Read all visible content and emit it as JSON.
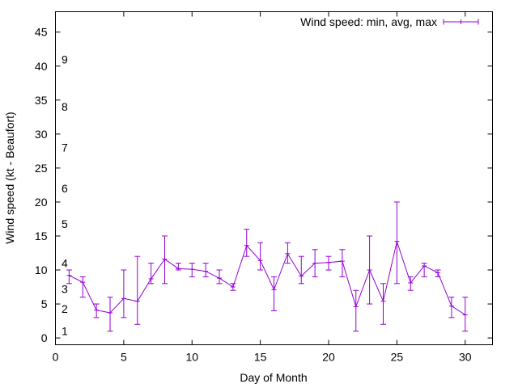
{
  "chart_data": {
    "type": "line",
    "xlabel": "Day of Month",
    "ylabel": "Wind speed (kt - Beaufort)",
    "xlim": [
      0,
      32
    ],
    "ylim": [
      -1,
      48
    ],
    "xticks": [
      0,
      5,
      10,
      15,
      20,
      25,
      30
    ],
    "yticks": [
      0,
      5,
      10,
      15,
      20,
      25,
      30,
      35,
      40,
      45
    ],
    "grid": false,
    "legend_position": "top-right",
    "beaufort_labels": [
      {
        "label": "1",
        "value": 1
      },
      {
        "label": "2",
        "value": 4.3
      },
      {
        "label": "3",
        "value": 7.2
      },
      {
        "label": "4",
        "value": 11
      },
      {
        "label": "5",
        "value": 16.8
      },
      {
        "label": "6",
        "value": 22
      },
      {
        "label": "7",
        "value": 28
      },
      {
        "label": "8",
        "value": 34
      },
      {
        "label": "9",
        "value": 41
      }
    ],
    "series": [
      {
        "name": "Wind speed: min, avg, max",
        "color": "#9400d3",
        "x": [
          1,
          2,
          3,
          4,
          5,
          6,
          7,
          8,
          9,
          10,
          11,
          12,
          13,
          14,
          15,
          16,
          17,
          18,
          19,
          20,
          21,
          22,
          23,
          24,
          25,
          26,
          27,
          28,
          29,
          30
        ],
        "y": [
          9.2,
          8.2,
          4.1,
          3.7,
          5.8,
          5.4,
          8.7,
          11.6,
          10.2,
          10.1,
          9.8,
          8.8,
          7.5,
          13.6,
          11.4,
          7.1,
          12.4,
          9.1,
          11,
          11.1,
          11.3,
          4.6,
          10,
          5.4,
          14.2,
          8.1,
          10.6,
          9.6,
          4.7,
          3.4
        ],
        "min": [
          8,
          6,
          3,
          1,
          3,
          2,
          8,
          8,
          10,
          9,
          9,
          8,
          7,
          12,
          10,
          4,
          11,
          8,
          9,
          10,
          9,
          1,
          5,
          2,
          8,
          7,
          9,
          9,
          3,
          1
        ],
        "max": [
          10,
          9,
          5,
          6,
          10,
          12,
          11,
          15,
          11,
          11,
          11,
          10,
          8,
          16,
          14,
          9,
          14,
          12,
          13,
          12,
          13,
          7,
          15,
          8,
          20,
          9,
          11,
          10,
          6,
          6
        ]
      }
    ]
  }
}
